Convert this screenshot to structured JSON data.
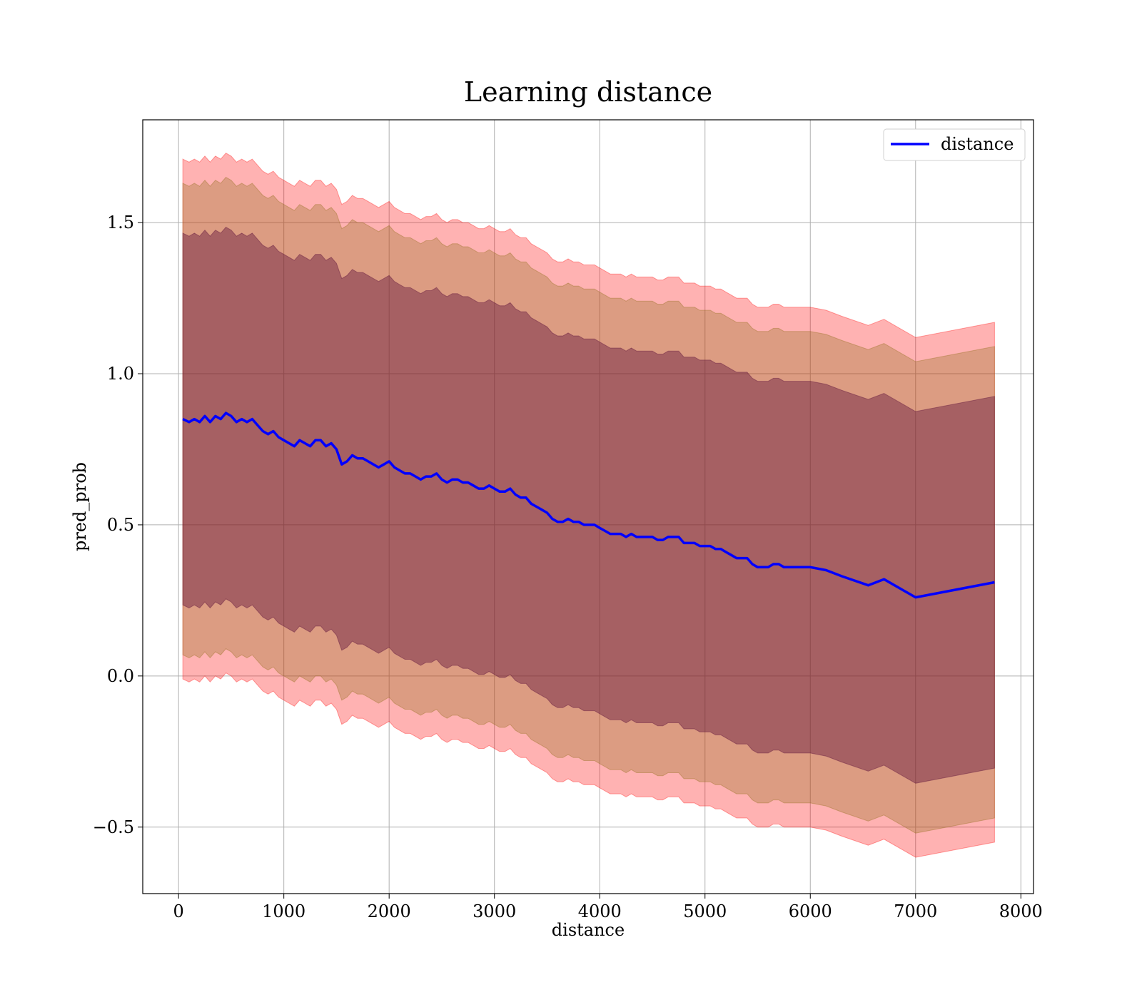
{
  "chart_data": {
    "type": "line",
    "title": "Learning distance",
    "xlabel": "distance",
    "ylabel": "pred_prob",
    "xlim": [
      -340,
      8120
    ],
    "ylim": [
      -0.72,
      1.84
    ],
    "xticks": [
      0,
      1000,
      2000,
      3000,
      4000,
      5000,
      6000,
      7000,
      8000
    ],
    "xtick_labels": [
      "0",
      "1000",
      "2000",
      "3000",
      "4000",
      "5000",
      "6000",
      "7000",
      "8000"
    ],
    "yticks": [
      -0.5,
      0.0,
      0.5,
      1.0,
      1.5
    ],
    "ytick_labels": [
      "−0.5",
      "0.0",
      "0.5",
      "1.0",
      "1.5"
    ],
    "grid": true,
    "legend": {
      "position": "top-right",
      "entries": [
        "distance"
      ]
    },
    "colors": {
      "line": "#0000ff",
      "band_outer": "#ff0000",
      "band_middle": "#8b6914",
      "band_inner": "#5a0f3a",
      "grid": "#b0b0b0"
    },
    "series": [
      {
        "name": "distance",
        "x": [
          40,
          100,
          150,
          200,
          250,
          300,
          350,
          400,
          450,
          500,
          550,
          600,
          650,
          700,
          750,
          800,
          850,
          900,
          950,
          1000,
          1050,
          1100,
          1150,
          1200,
          1250,
          1300,
          1350,
          1400,
          1450,
          1500,
          1550,
          1600,
          1650,
          1700,
          1750,
          1800,
          1850,
          1900,
          1950,
          2000,
          2050,
          2100,
          2150,
          2200,
          2250,
          2300,
          2350,
          2400,
          2450,
          2500,
          2550,
          2600,
          2650,
          2700,
          2750,
          2800,
          2850,
          2900,
          2950,
          3000,
          3050,
          3100,
          3150,
          3200,
          3250,
          3300,
          3350,
          3400,
          3450,
          3500,
          3550,
          3600,
          3650,
          3700,
          3750,
          3800,
          3850,
          3900,
          3950,
          4000,
          4050,
          4100,
          4150,
          4200,
          4250,
          4300,
          4350,
          4400,
          4450,
          4500,
          4550,
          4600,
          4650,
          4700,
          4750,
          4800,
          4850,
          4900,
          4950,
          5000,
          5050,
          5100,
          5150,
          5200,
          5250,
          5300,
          5350,
          5400,
          5450,
          5500,
          5550,
          5600,
          5650,
          5700,
          5750,
          5800,
          5900,
          6000,
          6150,
          6300,
          6550,
          6700,
          7000,
          7750
        ],
        "mean": [
          0.85,
          0.84,
          0.85,
          0.84,
          0.86,
          0.84,
          0.86,
          0.85,
          0.87,
          0.86,
          0.84,
          0.85,
          0.84,
          0.85,
          0.83,
          0.81,
          0.8,
          0.81,
          0.79,
          0.78,
          0.77,
          0.76,
          0.78,
          0.77,
          0.76,
          0.78,
          0.78,
          0.76,
          0.77,
          0.75,
          0.7,
          0.71,
          0.73,
          0.72,
          0.72,
          0.71,
          0.7,
          0.69,
          0.7,
          0.71,
          0.69,
          0.68,
          0.67,
          0.67,
          0.66,
          0.65,
          0.66,
          0.66,
          0.67,
          0.65,
          0.64,
          0.65,
          0.65,
          0.64,
          0.64,
          0.63,
          0.62,
          0.62,
          0.63,
          0.62,
          0.61,
          0.61,
          0.62,
          0.6,
          0.59,
          0.59,
          0.57,
          0.56,
          0.55,
          0.54,
          0.52,
          0.51,
          0.51,
          0.52,
          0.51,
          0.51,
          0.5,
          0.5,
          0.5,
          0.49,
          0.48,
          0.47,
          0.47,
          0.47,
          0.46,
          0.47,
          0.46,
          0.46,
          0.46,
          0.46,
          0.45,
          0.45,
          0.46,
          0.46,
          0.46,
          0.44,
          0.44,
          0.44,
          0.43,
          0.43,
          0.43,
          0.42,
          0.42,
          0.41,
          0.4,
          0.39,
          0.39,
          0.39,
          0.37,
          0.36,
          0.36,
          0.36,
          0.37,
          0.37,
          0.36,
          0.36,
          0.36,
          0.36,
          0.35,
          0.33,
          0.3,
          0.32,
          0.26,
          0.31
        ],
        "band_inner_width": 0.615,
        "band_middle_width": 0.78,
        "band_outer_width": 0.86
      }
    ]
  }
}
